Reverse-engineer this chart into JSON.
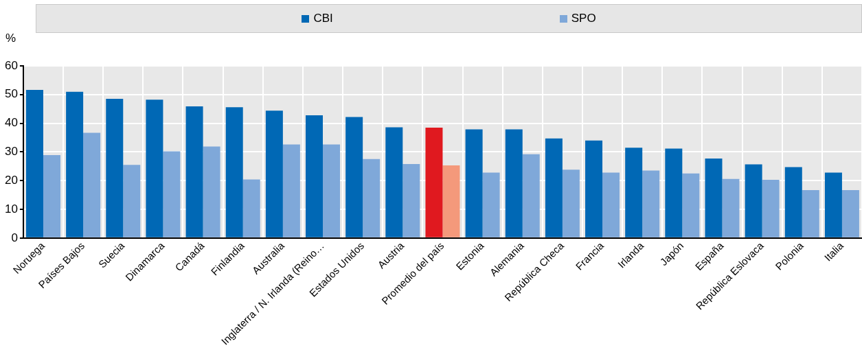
{
  "chart_data": {
    "type": "bar",
    "ylabel": "%",
    "categories": [
      "Noruega",
      "Países Bajos",
      "Suecia",
      "Dinamarca",
      "Canadá",
      "Finlandia",
      "Australia",
      "Inglaterra / N. Irlanda (Reino…",
      "Estados Unidos",
      "Austria",
      "Promedio del país",
      "Estonia",
      "Alemania",
      "República Checa",
      "Francia",
      "Irlanda",
      "Japón",
      "España",
      "República Eslovaca",
      "Polonia",
      "Italia"
    ],
    "series": [
      {
        "name": "CBI",
        "color": "#0068b5",
        "colors": [
          "#0068b5",
          "#0068b5",
          "#0068b5",
          "#0068b5",
          "#0068b5",
          "#0068b5",
          "#0068b5",
          "#0068b5",
          "#0068b5",
          "#0068b5",
          "#e0191f",
          "#0068b5",
          "#0068b5",
          "#0068b5",
          "#0068b5",
          "#0068b5",
          "#0068b5",
          "#0068b5",
          "#0068b5",
          "#0068b5",
          "#0068b5"
        ],
        "values": [
          51.6,
          51.0,
          48.5,
          48.2,
          45.9,
          45.6,
          44.4,
          42.8,
          42.2,
          38.6,
          38.5,
          37.9,
          37.9,
          34.7,
          34.0,
          31.5,
          31.2,
          27.7,
          25.7,
          24.7,
          22.8
        ]
      },
      {
        "name": "SPO",
        "color": "#7fa8d9",
        "colors": [
          "#7fa8d9",
          "#7fa8d9",
          "#7fa8d9",
          "#7fa8d9",
          "#7fa8d9",
          "#7fa8d9",
          "#7fa8d9",
          "#7fa8d9",
          "#7fa8d9",
          "#7fa8d9",
          "#f4997b",
          "#7fa8d9",
          "#7fa8d9",
          "#7fa8d9",
          "#7fa8d9",
          "#7fa8d9",
          "#7fa8d9",
          "#7fa8d9",
          "#7fa8d9",
          "#7fa8d9",
          "#7fa8d9"
        ],
        "values": [
          28.9,
          36.7,
          25.5,
          30.2,
          31.9,
          20.4,
          32.6,
          32.6,
          27.5,
          25.8,
          25.3,
          22.8,
          29.2,
          23.8,
          22.8,
          23.5,
          22.5,
          20.6,
          20.3,
          16.7,
          16.7
        ]
      }
    ],
    "ylim": [
      0,
      60
    ],
    "yticks": [
      0,
      10,
      20,
      30,
      40,
      50,
      60
    ],
    "grid": true,
    "legend": "top"
  }
}
